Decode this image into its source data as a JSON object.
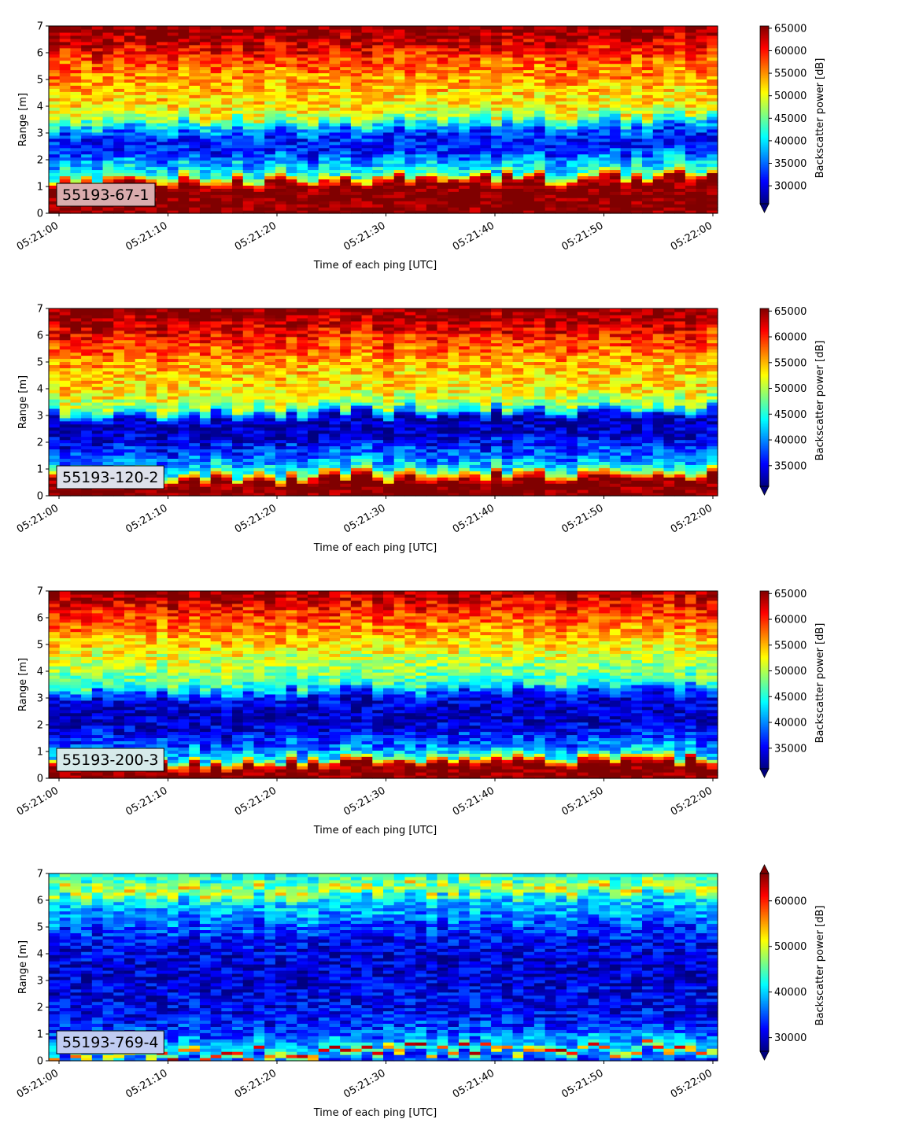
{
  "chart_data": [
    {
      "type": "heatmap",
      "label": "55193-67-1",
      "label_box_color": "#d9acad",
      "xlabel": "Time of each ping [UTC]",
      "ylabel": "Range [m]",
      "colorbar_label": "Backscatter power [dB]",
      "x_ticks": [
        "05:21:00",
        "05:21:10",
        "05:21:20",
        "05:21:30",
        "05:21:40",
        "05:21:50",
        "05:22:00"
      ],
      "y_ticks": [
        0,
        1,
        2,
        3,
        4,
        5,
        6,
        7
      ],
      "ylim": [
        0,
        7
      ],
      "colorbar_ticks": [
        30000,
        35000,
        40000,
        45000,
        50000,
        55000,
        60000,
        65000
      ],
      "vmin": 26000,
      "vmax": 65500,
      "colorbar_extend": "min",
      "profile": [
        {
          "range": 0.0,
          "value": 66000
        },
        {
          "range": 0.25,
          "value": 66000
        },
        {
          "range": 0.9,
          "value": 66000
        },
        {
          "range": 1.1,
          "value": 62000
        },
        {
          "range": 1.2,
          "value": 52000
        },
        {
          "range": 1.4,
          "value": 42000
        },
        {
          "range": 1.8,
          "value": 38000
        },
        {
          "range": 2.2,
          "value": 32000
        },
        {
          "range": 2.8,
          "value": 32000
        },
        {
          "range": 3.2,
          "value": 40000
        },
        {
          "range": 3.6,
          "value": 50000
        },
        {
          "range": 4.5,
          "value": 53000
        },
        {
          "range": 5.5,
          "value": 57000
        },
        {
          "range": 6.2,
          "value": 62000
        },
        {
          "range": 6.8,
          "value": 66000
        },
        {
          "range": 7.0,
          "value": 66000
        }
      ]
    },
    {
      "type": "heatmap",
      "label": "55193-120-2",
      "label_box_color": "#dde0ea",
      "xlabel": "Time of each ping [UTC]",
      "ylabel": "Range [m]",
      "colorbar_label": "Backscatter power [dB]",
      "x_ticks": [
        "05:21:00",
        "05:21:10",
        "05:21:20",
        "05:21:30",
        "05:21:40",
        "05:21:50",
        "05:22:00"
      ],
      "y_ticks": [
        0,
        1,
        2,
        3,
        4,
        5,
        6,
        7
      ],
      "ylim": [
        0,
        7
      ],
      "colorbar_ticks": [
        35000,
        40000,
        45000,
        50000,
        55000,
        60000,
        65000
      ],
      "vmin": 31000,
      "vmax": 65500,
      "colorbar_extend": "min",
      "profile": [
        {
          "range": 0.0,
          "value": 66000
        },
        {
          "range": 0.45,
          "value": 66000
        },
        {
          "range": 0.6,
          "value": 58000
        },
        {
          "range": 0.8,
          "value": 46000
        },
        {
          "range": 1.2,
          "value": 40000
        },
        {
          "range": 1.8,
          "value": 36000
        },
        {
          "range": 2.2,
          "value": 33000
        },
        {
          "range": 2.8,
          "value": 33000
        },
        {
          "range": 3.2,
          "value": 48000
        },
        {
          "range": 3.8,
          "value": 53000
        },
        {
          "range": 4.8,
          "value": 55000
        },
        {
          "range": 5.6,
          "value": 59000
        },
        {
          "range": 6.3,
          "value": 63000
        },
        {
          "range": 7.0,
          "value": 66000
        }
      ]
    },
    {
      "type": "heatmap",
      "label": "55193-200-3",
      "label_box_color": "#d6eaea",
      "xlabel": "Time of each ping [UTC]",
      "ylabel": "Range [m]",
      "colorbar_label": "Backscatter power [dB]",
      "x_ticks": [
        "05:21:00",
        "05:21:10",
        "05:21:20",
        "05:21:30",
        "05:21:40",
        "05:21:50",
        "05:22:00"
      ],
      "y_ticks": [
        0,
        1,
        2,
        3,
        4,
        5,
        6,
        7
      ],
      "ylim": [
        0,
        7
      ],
      "colorbar_ticks": [
        35000,
        40000,
        45000,
        50000,
        55000,
        60000,
        65000
      ],
      "vmin": 31000,
      "vmax": 65500,
      "colorbar_extend": "min",
      "profile": [
        {
          "range": 0.0,
          "value": 66000
        },
        {
          "range": 0.35,
          "value": 66000
        },
        {
          "range": 0.5,
          "value": 58000
        },
        {
          "range": 0.7,
          "value": 44000
        },
        {
          "range": 1.2,
          "value": 38000
        },
        {
          "range": 1.8,
          "value": 34000
        },
        {
          "range": 2.5,
          "value": 33000
        },
        {
          "range": 3.0,
          "value": 36000
        },
        {
          "range": 3.4,
          "value": 46000
        },
        {
          "range": 4.2,
          "value": 50000
        },
        {
          "range": 5.0,
          "value": 54000
        },
        {
          "range": 5.8,
          "value": 58000
        },
        {
          "range": 6.5,
          "value": 62000
        },
        {
          "range": 7.0,
          "value": 66000
        }
      ]
    },
    {
      "type": "heatmap",
      "label": "55193-769-4",
      "label_box_color": "#c0ccf2",
      "xlabel": "Time of each ping [UTC]",
      "ylabel": "Range [m]",
      "colorbar_label": "Backscatter power [dB]",
      "x_ticks": [
        "05:21:00",
        "05:21:10",
        "05:21:20",
        "05:21:30",
        "05:21:40",
        "05:21:50",
        "05:22:00"
      ],
      "y_ticks": [
        0,
        1,
        2,
        3,
        4,
        5,
        6,
        7
      ],
      "ylim": [
        0,
        7
      ],
      "colorbar_ticks": [
        30000,
        40000,
        50000,
        60000
      ],
      "vmin": 27000,
      "vmax": 66000,
      "colorbar_extend": "both",
      "profile": [
        {
          "range": 0.0,
          "value": 34000
        },
        {
          "range": 0.15,
          "value": 40000
        },
        {
          "range": 0.22,
          "value": 56000
        },
        {
          "range": 0.28,
          "value": 64000
        },
        {
          "range": 0.35,
          "value": 42000
        },
        {
          "range": 0.8,
          "value": 36000
        },
        {
          "range": 1.5,
          "value": 32000
        },
        {
          "range": 3.5,
          "value": 30000
        },
        {
          "range": 4.5,
          "value": 32000
        },
        {
          "range": 5.3,
          "value": 37000
        },
        {
          "range": 6.0,
          "value": 41000
        },
        {
          "range": 6.3,
          "value": 52000
        },
        {
          "range": 6.5,
          "value": 46000
        },
        {
          "range": 7.0,
          "value": 42000
        }
      ]
    }
  ]
}
